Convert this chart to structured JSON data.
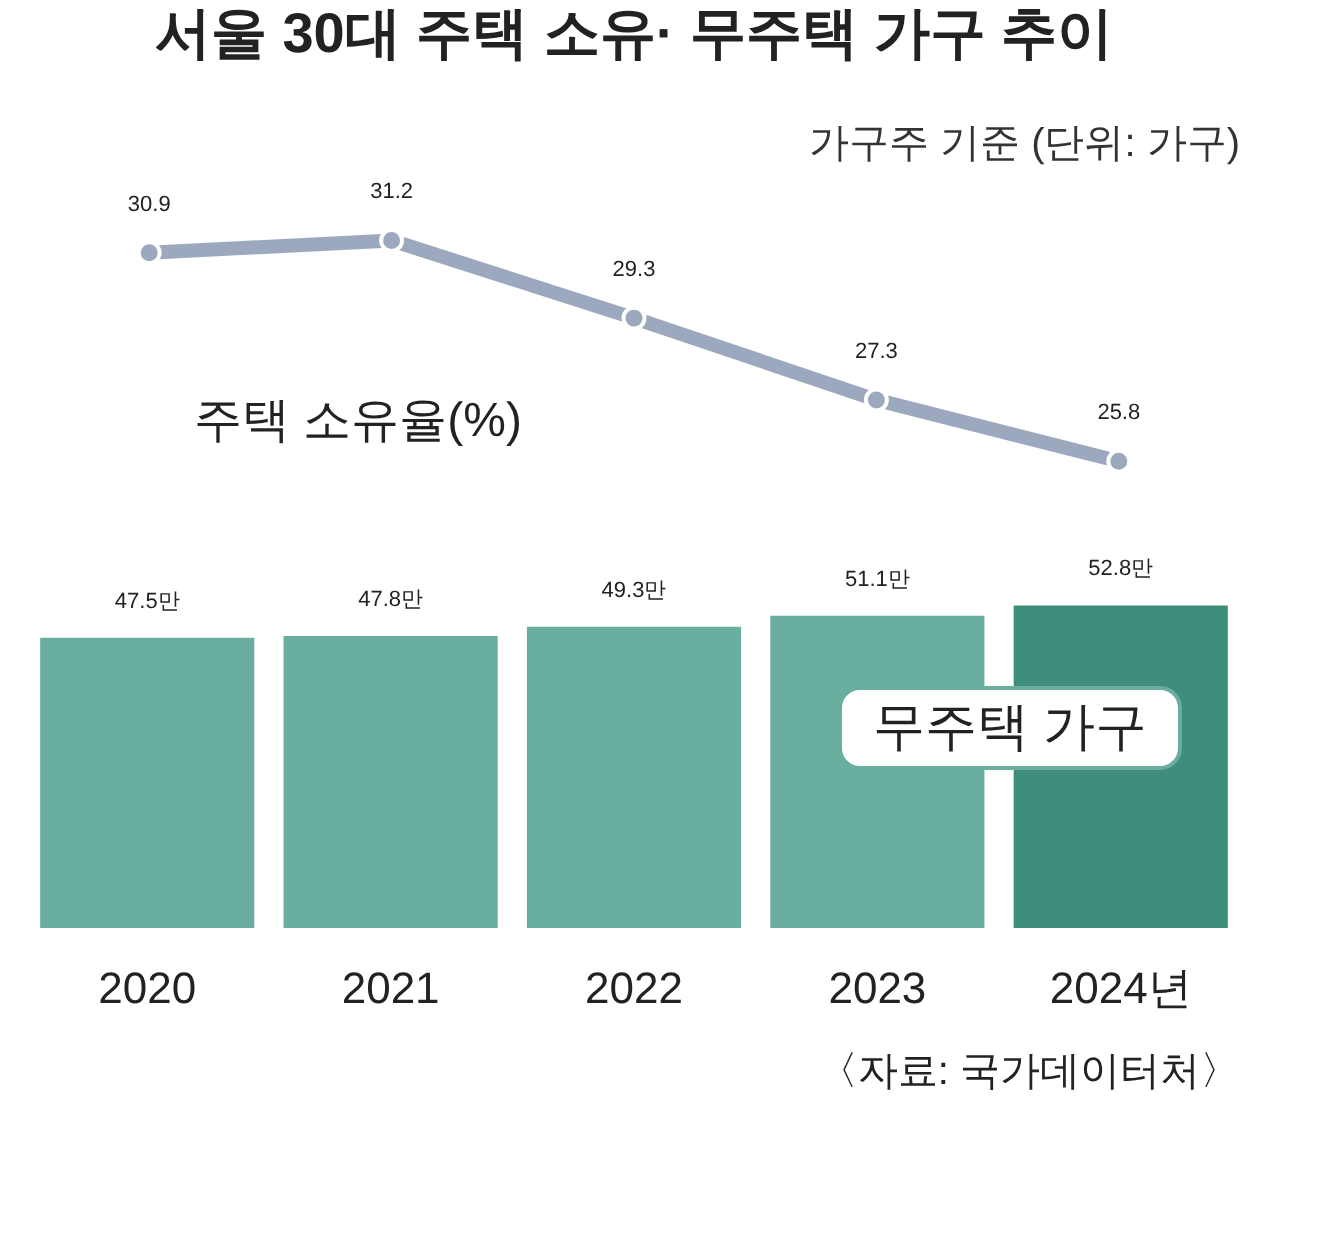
{
  "chart_data": [
    {
      "type": "line",
      "title": "서울 30대 주택 소유· 무주택 가구 추이",
      "subtitle": "가구주 기준 (단위: 가구)",
      "categories": [
        null,
        null,
        null,
        null,
        null
      ],
      "marker": "circle",
      "series": [
        {
          "name": "주택 소유율(%)",
          "color": "#9ba8bd",
          "values": [
            30.9,
            31.2,
            29.3,
            27.3,
            25.8
          ],
          "value_labels": [
            "30.9",
            "31.2",
            "29.3",
            "27.3",
            "25.8"
          ]
        }
      ]
    },
    {
      "type": "bar",
      "annotations": [
        "〈자료: 국가데이터처〉"
      ],
      "categories": [
        "2020",
        "2021",
        "2022",
        "2023",
        "2024년"
      ],
      "series": [
        {
          "name": "무주택 가구",
          "color": "#6aae9f",
          "colors": [
            "#6aae9f",
            "#6aae9f",
            "#6aae9f",
            "#6aae9f",
            "#3f8e7b"
          ],
          "values": [
            47.5,
            47.8,
            49.3,
            51.1,
            52.8
          ],
          "value_labels": [
            "47.5만",
            "47.8만",
            "49.3만",
            "51.1만",
            "52.8만"
          ]
        }
      ]
    }
  ]
}
